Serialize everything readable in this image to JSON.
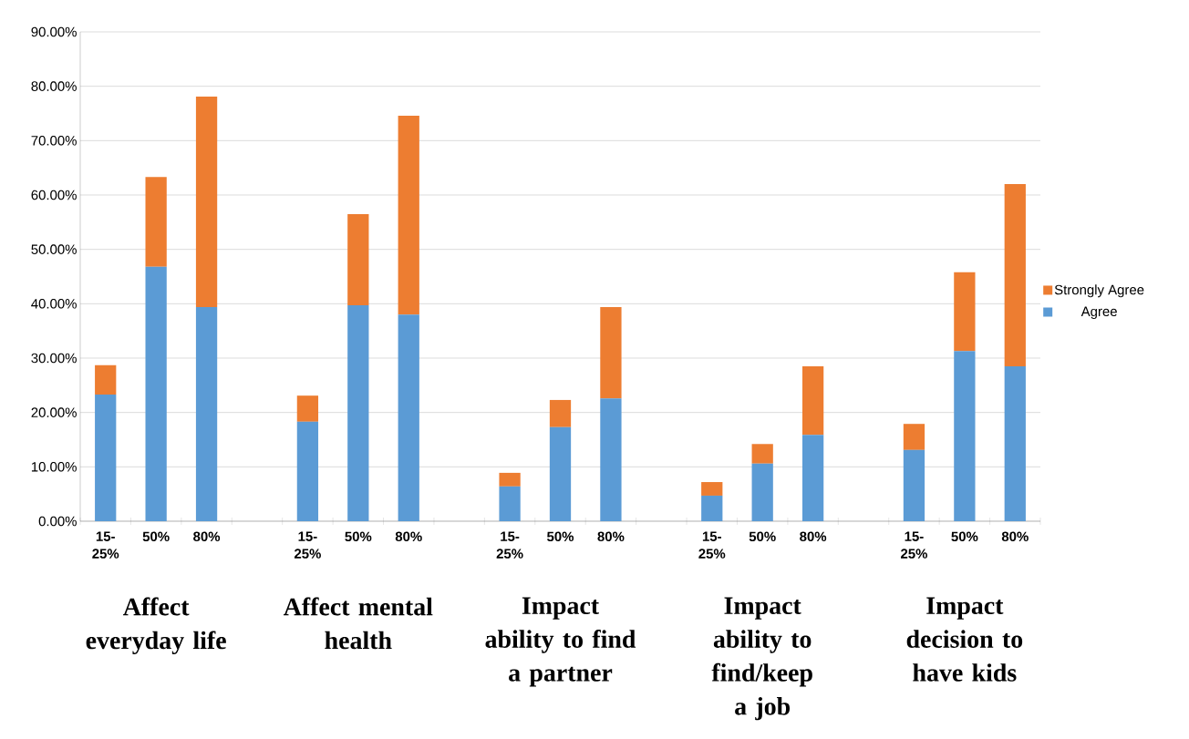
{
  "chart_data": {
    "type": "bar",
    "stacked": true,
    "categories": [
      "15-25%",
      "50%",
      "80%",
      null,
      "15-25%",
      "50%",
      "80%",
      null,
      "15-25%",
      "50%",
      "80%",
      null,
      "15-25%",
      "50%",
      "80%",
      null,
      "15-25%",
      "50%",
      "80%"
    ],
    "series": [
      {
        "name": "Agree",
        "color": "#5b9bd5",
        "values": [
          23.3,
          46.8,
          39.4,
          null,
          18.3,
          39.7,
          38.0,
          null,
          6.4,
          17.3,
          22.6,
          null,
          4.7,
          10.6,
          15.9,
          null,
          13.1,
          31.3,
          28.5
        ]
      },
      {
        "name": "Strongly Agree",
        "color": "#ed7d31",
        "values": [
          5.4,
          16.5,
          38.7,
          null,
          4.8,
          16.8,
          36.6,
          null,
          2.5,
          5.0,
          16.8,
          null,
          2.5,
          3.6,
          12.6,
          null,
          4.8,
          14.5,
          33.5
        ]
      }
    ],
    "ylim": [
      0,
      90
    ],
    "yticks": [
      {
        "value": 0,
        "label": "0.00%"
      },
      {
        "value": 10,
        "label": "10.00%"
      },
      {
        "value": 20,
        "label": "20.00%"
      },
      {
        "value": 30,
        "label": "30.00%"
      },
      {
        "value": 40,
        "label": "40.00%"
      },
      {
        "value": 50,
        "label": "50.00%"
      },
      {
        "value": 60,
        "label": "60.00%"
      },
      {
        "value": 70,
        "label": "70.00%"
      },
      {
        "value": 80,
        "label": "80.00%"
      },
      {
        "value": 90,
        "label": "90.00%"
      }
    ],
    "grid": "y",
    "legend": "right",
    "annotations": [
      "Affect everyday life",
      "Affect mental health",
      "Impact ability to find a partner",
      "Impact ability to find/keep a job",
      "Impact decision to have kids"
    ]
  }
}
